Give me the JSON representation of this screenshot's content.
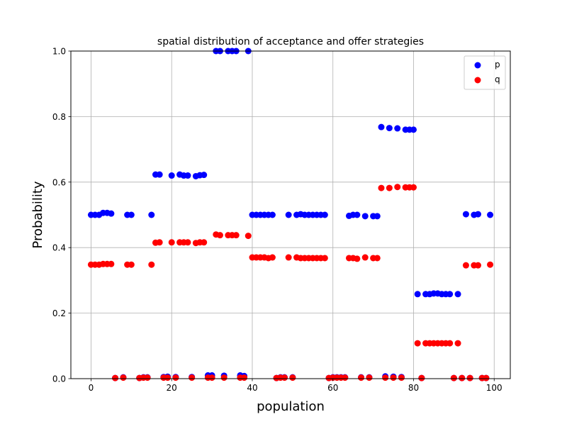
{
  "chart_data": {
    "type": "scatter",
    "title": "spatial distribution of acceptance and offer strategies",
    "xlabel": "population",
    "ylabel": "Probability",
    "xlim": [
      -5,
      104
    ],
    "ylim": [
      0,
      1.0
    ],
    "xticks": [
      0,
      20,
      40,
      60,
      80,
      100
    ],
    "yticks": [
      0.0,
      0.2,
      0.4,
      0.6,
      0.8,
      1.0
    ],
    "xtick_labels": [
      "0",
      "20",
      "40",
      "60",
      "80",
      "100"
    ],
    "ytick_labels": [
      "0.0",
      "0.2",
      "0.4",
      "0.6",
      "0.8",
      "1.0"
    ],
    "grid": true,
    "legend_position": "top-right",
    "series": [
      {
        "name": "p",
        "color": "#0000ff",
        "x": [
          0,
          1,
          2,
          3,
          4,
          5,
          6,
          8,
          9,
          10,
          12,
          13,
          14,
          15,
          16,
          17,
          18,
          19,
          20,
          21,
          22,
          23,
          24,
          25,
          26,
          27,
          28,
          29,
          30,
          31,
          32,
          33,
          34,
          35,
          36,
          37,
          38,
          39,
          40,
          41,
          42,
          43,
          44,
          45,
          46,
          47,
          48,
          49,
          50,
          51,
          52,
          53,
          54,
          55,
          56,
          57,
          58,
          59,
          60,
          61,
          62,
          63,
          64,
          65,
          66,
          67,
          68,
          69,
          70,
          71,
          72,
          73,
          74,
          75,
          76,
          77,
          78,
          79,
          80,
          81,
          82,
          83,
          84,
          85,
          86,
          87,
          88,
          89,
          90,
          91,
          92,
          93,
          94,
          95,
          96,
          97,
          98,
          99
        ],
        "y": [
          0.5,
          0.5,
          0.5,
          0.506,
          0.506,
          0.504,
          0.002,
          0.004,
          0.5,
          0.5,
          0.002,
          0.004,
          0.004,
          0.5,
          0.623,
          0.623,
          0.005,
          0.006,
          0.62,
          0.005,
          0.623,
          0.62,
          0.62,
          0.005,
          0.618,
          0.621,
          0.622,
          0.01,
          0.01,
          1.0,
          1.0,
          0.009,
          1.0,
          1.0,
          1.0,
          0.01,
          0.008,
          1.0,
          0.5,
          0.5,
          0.5,
          0.5,
          0.5,
          0.5,
          0.002,
          0.004,
          0.004,
          0.5,
          0.004,
          0.5,
          0.502,
          0.5,
          0.5,
          0.5,
          0.5,
          0.5,
          0.5,
          0.002,
          0.004,
          0.004,
          0.004,
          0.004,
          0.497,
          0.5,
          0.5,
          0.004,
          0.496,
          0.004,
          0.496,
          0.496,
          0.768,
          0.007,
          0.765,
          0.006,
          0.764,
          0.005,
          0.76,
          0.76,
          0.76,
          0.258,
          0.002,
          0.258,
          0.258,
          0.26,
          0.26,
          0.258,
          0.258,
          0.258,
          0.002,
          0.258,
          0.002,
          0.502,
          0.002,
          0.5,
          0.502,
          0.002,
          0.002,
          0.5
        ]
      },
      {
        "name": "q",
        "color": "#ff0000",
        "x": [
          0,
          1,
          2,
          3,
          4,
          5,
          6,
          8,
          9,
          10,
          12,
          13,
          14,
          15,
          16,
          17,
          18,
          19,
          20,
          21,
          22,
          23,
          24,
          25,
          26,
          27,
          28,
          29,
          30,
          31,
          32,
          33,
          34,
          35,
          36,
          37,
          38,
          39,
          40,
          41,
          42,
          43,
          44,
          45,
          46,
          47,
          48,
          49,
          50,
          51,
          52,
          53,
          54,
          55,
          56,
          57,
          58,
          59,
          60,
          61,
          62,
          63,
          64,
          65,
          66,
          67,
          68,
          69,
          70,
          71,
          72,
          73,
          74,
          75,
          76,
          77,
          78,
          79,
          80,
          81,
          82,
          83,
          84,
          85,
          86,
          87,
          88,
          89,
          90,
          91,
          92,
          93,
          94,
          95,
          96,
          97,
          98,
          99
        ],
        "y": [
          0.348,
          0.348,
          0.348,
          0.35,
          0.35,
          0.35,
          0.002,
          0.003,
          0.348,
          0.348,
          0.002,
          0.003,
          0.003,
          0.348,
          0.415,
          0.416,
          0.003,
          0.003,
          0.416,
          0.003,
          0.416,
          0.416,
          0.416,
          0.003,
          0.414,
          0.416,
          0.416,
          0.003,
          0.003,
          0.44,
          0.438,
          0.003,
          0.438,
          0.438,
          0.438,
          0.003,
          0.003,
          0.436,
          0.37,
          0.37,
          0.37,
          0.37,
          0.368,
          0.37,
          0.002,
          0.003,
          0.003,
          0.37,
          0.003,
          0.37,
          0.368,
          0.368,
          0.368,
          0.368,
          0.368,
          0.368,
          0.368,
          0.002,
          0.003,
          0.003,
          0.003,
          0.003,
          0.368,
          0.368,
          0.366,
          0.003,
          0.37,
          0.003,
          0.368,
          0.368,
          0.582,
          0.003,
          0.582,
          0.003,
          0.585,
          0.003,
          0.584,
          0.584,
          0.584,
          0.108,
          0.002,
          0.108,
          0.108,
          0.108,
          0.108,
          0.108,
          0.108,
          0.108,
          0.002,
          0.108,
          0.002,
          0.346,
          0.002,
          0.346,
          0.346,
          0.002,
          0.002,
          0.348
        ]
      }
    ]
  }
}
